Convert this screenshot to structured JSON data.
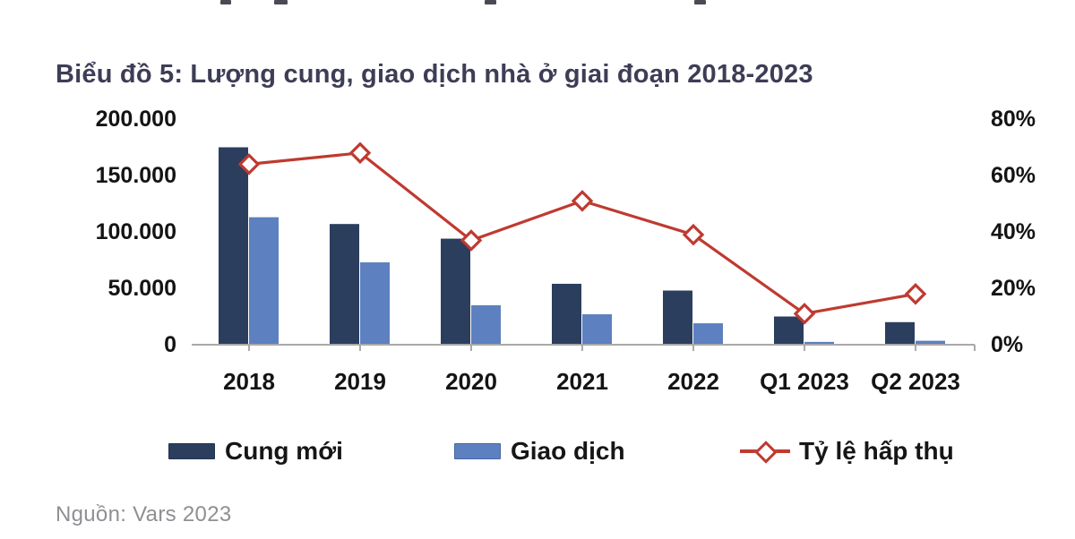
{
  "page": {
    "title": "Biểu đồ 5: Lượng cung, giao dịch nhà ở giai đoạn 2018-2023",
    "source": "Nguồn: Vars 2023"
  },
  "chart_data": {
    "type": "bar",
    "subtype": "combo-bar-line",
    "title": "Biểu đồ 5: Lượng cung, giao dịch nhà ở giai đoạn 2018-2023",
    "categories": [
      "2018",
      "2019",
      "2020",
      "2021",
      "2022",
      "Q1 2023",
      "Q2 2023"
    ],
    "series": [
      {
        "name": "Cung mới",
        "type": "bar",
        "axis": "left",
        "color": "#2b3e5e",
        "values": [
          175000,
          107000,
          94000,
          54000,
          48000,
          25000,
          20000
        ]
      },
      {
        "name": "Giao dịch",
        "type": "bar",
        "axis": "left",
        "color": "#5d80c0",
        "values": [
          113000,
          73000,
          35000,
          27000,
          19000,
          2500,
          3500
        ]
      },
      {
        "name": "Tỷ lệ hấp thụ",
        "type": "line",
        "axis": "right",
        "color": "#bf3a30",
        "values": [
          64,
          68,
          37,
          51,
          39,
          11,
          18
        ]
      }
    ],
    "left_axis": {
      "min": 0,
      "max": 200000,
      "tick_labels": [
        "200.000",
        "150.000",
        "100.000",
        "50.000",
        "0"
      ],
      "tick_values": [
        200000,
        150000,
        100000,
        50000,
        0
      ]
    },
    "right_axis": {
      "min": 0,
      "max": 80,
      "unit": "%",
      "tick_labels": [
        "80%",
        "60%",
        "40%",
        "20%",
        "0%"
      ],
      "tick_values": [
        80,
        60,
        40,
        20,
        0
      ]
    },
    "grid": false,
    "legend_position": "bottom",
    "marker": "hollow-diamond",
    "axis_line_color": "#a9a9a9"
  }
}
